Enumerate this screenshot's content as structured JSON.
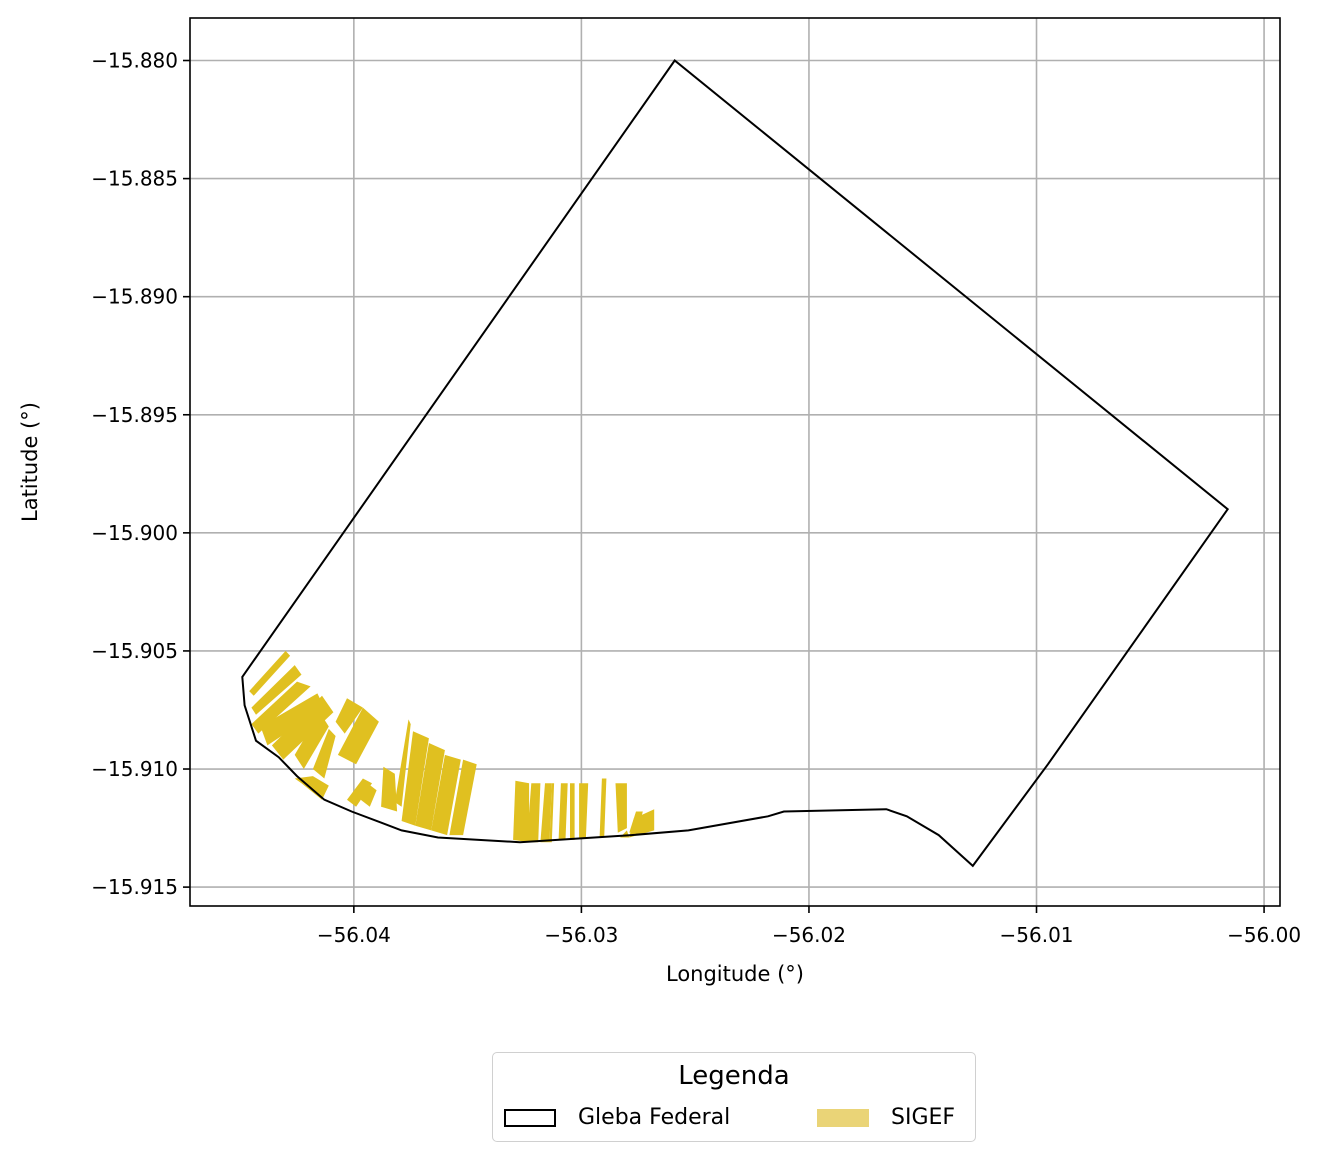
{
  "chart_data": {
    "type": "map",
    "xlabel": "Longitude (°)",
    "ylabel": "Latitude (°)",
    "xlim": [
      -56.0472,
      -55.9993
    ],
    "ylim": [
      -15.9158,
      -15.8782
    ],
    "x_ticks": [
      -56.04,
      -56.03,
      -56.02,
      -56.01,
      -56.0
    ],
    "x_tick_labels": [
      "−56.04",
      "−56.03",
      "−56.02",
      "−56.01",
      "−56.00"
    ],
    "y_ticks": [
      -15.88,
      -15.885,
      -15.89,
      -15.895,
      -15.9,
      -15.905,
      -15.91,
      -15.915
    ],
    "y_tick_labels": [
      "−15.880",
      "−15.885",
      "−15.890",
      "−15.895",
      "−15.900",
      "−15.905",
      "−15.910",
      "−15.915"
    ],
    "grid": true,
    "colors": {
      "gleba_edge": "#000000",
      "sigef_fill": "#e0c020",
      "legend_sigef": "#ead477",
      "grid": "#b0b0b0"
    },
    "gleba_federal": {
      "coordinates": [
        [
          -56.0449,
          -15.9061
        ],
        [
          -56.0259,
          -15.88
        ],
        [
          -56.0016,
          -15.899
        ],
        [
          -56.0095,
          -15.9098
        ],
        [
          -56.0128,
          -15.9141
        ],
        [
          -56.0143,
          -15.9128
        ],
        [
          -56.0157,
          -15.912
        ],
        [
          -56.0166,
          -15.9117
        ],
        [
          -56.0211,
          -15.9118
        ],
        [
          -56.0218,
          -15.912
        ],
        [
          -56.0253,
          -15.9126
        ],
        [
          -56.0278,
          -15.9128
        ],
        [
          -56.0327,
          -15.9131
        ],
        [
          -56.0363,
          -15.9129
        ],
        [
          -56.0379,
          -15.9126
        ],
        [
          -56.0401,
          -15.9118
        ],
        [
          -56.0413,
          -15.9113
        ],
        [
          -56.0425,
          -15.9103
        ],
        [
          -56.0433,
          -15.9095
        ],
        [
          -56.0443,
          -15.9088
        ],
        [
          -56.0448,
          -15.9073
        ],
        [
          -56.0449,
          -15.9061
        ]
      ]
    },
    "sigef_parcels": [
      [
        [
          -56.0446,
          -15.9067
        ],
        [
          -56.043,
          -15.905
        ],
        [
          -56.0428,
          -15.9052
        ],
        [
          -56.0444,
          -15.9069
        ]
      ],
      [
        [
          -56.0445,
          -15.9074
        ],
        [
          -56.0426,
          -15.9056
        ],
        [
          -56.0423,
          -15.906
        ],
        [
          -56.0443,
          -15.9077
        ]
      ],
      [
        [
          -56.0445,
          -15.9081
        ],
        [
          -56.0425,
          -15.9063
        ],
        [
          -56.0419,
          -15.9065
        ],
        [
          -56.0442,
          -15.9085
        ]
      ],
      [
        [
          -56.0441,
          -15.9082
        ],
        [
          -56.0416,
          -15.9068
        ],
        [
          -56.0413,
          -15.9074
        ],
        [
          -56.0438,
          -15.909
        ]
      ],
      [
        [
          -56.0436,
          -15.909
        ],
        [
          -56.0414,
          -15.9069
        ],
        [
          -56.0409,
          -15.9076
        ],
        [
          -56.0431,
          -15.9096
        ]
      ],
      [
        [
          -56.0426,
          -15.9094
        ],
        [
          -56.0415,
          -15.9076
        ],
        [
          -56.0411,
          -15.9082
        ],
        [
          -56.0422,
          -15.91
        ]
      ],
      [
        [
          -56.0418,
          -15.91
        ],
        [
          -56.0411,
          -15.9083
        ],
        [
          -56.0408,
          -15.9086
        ],
        [
          -56.0413,
          -15.9104
        ]
      ],
      [
        [
          -56.0426,
          -15.9104
        ],
        [
          -56.0418,
          -15.9103
        ],
        [
          -56.0411,
          -15.9107
        ],
        [
          -56.0414,
          -15.9113
        ],
        [
          -56.0423,
          -15.9106
        ]
      ],
      [
        [
          -56.0408,
          -15.908
        ],
        [
          -56.0403,
          -15.907
        ],
        [
          -56.0396,
          -15.9074
        ],
        [
          -56.0404,
          -15.9085
        ]
      ],
      [
        [
          -56.0407,
          -15.9094
        ],
        [
          -56.0396,
          -15.9074
        ],
        [
          -56.0389,
          -15.908
        ],
        [
          -56.0399,
          -15.9098
        ]
      ],
      [
        [
          -56.0403,
          -15.9113
        ],
        [
          -56.0396,
          -15.9104
        ],
        [
          -56.0392,
          -15.9106
        ],
        [
          -56.0399,
          -15.9116
        ]
      ],
      [
        [
          -56.0397,
          -15.9113
        ],
        [
          -56.0394,
          -15.9106
        ],
        [
          -56.039,
          -15.9109
        ],
        [
          -56.0393,
          -15.9116
        ]
      ],
      [
        [
          -56.0388,
          -15.9116
        ],
        [
          -56.0387,
          -15.9099
        ],
        [
          -56.0382,
          -15.9102
        ],
        [
          -56.0381,
          -15.9118
        ]
      ],
      [
        [
          -56.0382,
          -15.9114
        ],
        [
          -56.0376,
          -15.9079
        ],
        [
          -56.0375,
          -15.9081
        ],
        [
          -56.0379,
          -15.9116
        ]
      ],
      [
        [
          -56.0379,
          -15.9122
        ],
        [
          -56.0374,
          -15.9084
        ],
        [
          -56.0367,
          -15.9087
        ],
        [
          -56.0373,
          -15.9124
        ]
      ],
      [
        [
          -56.0373,
          -15.9124
        ],
        [
          -56.0367,
          -15.9089
        ],
        [
          -56.036,
          -15.9092
        ],
        [
          -56.0366,
          -15.9126
        ]
      ],
      [
        [
          -56.0366,
          -15.9126
        ],
        [
          -56.036,
          -15.9094
        ],
        [
          -56.0353,
          -15.9096
        ],
        [
          -56.0359,
          -15.9128
        ]
      ],
      [
        [
          -56.0358,
          -15.9128
        ],
        [
          -56.0352,
          -15.9096
        ],
        [
          -56.0346,
          -15.9098
        ],
        [
          -56.0352,
          -15.9128
        ]
      ],
      [
        [
          -56.033,
          -15.913
        ],
        [
          -56.0329,
          -15.9105
        ],
        [
          -56.0323,
          -15.9106
        ],
        [
          -56.0323,
          -15.9131
        ]
      ],
      [
        [
          -56.0324,
          -15.9131
        ],
        [
          -56.0322,
          -15.9106
        ],
        [
          -56.0318,
          -15.9106
        ],
        [
          -56.0319,
          -15.9131
        ]
      ],
      [
        [
          -56.0318,
          -15.9131
        ],
        [
          -56.0316,
          -15.9106
        ],
        [
          -56.0313,
          -15.9106
        ],
        [
          -56.0314,
          -15.9131
        ]
      ],
      [
        [
          -56.0314,
          -15.9131
        ],
        [
          -56.0313,
          -15.9106
        ],
        [
          -56.0312,
          -15.9106
        ],
        [
          -56.0313,
          -15.9131
        ]
      ],
      [
        [
          -56.031,
          -15.913
        ],
        [
          -56.0309,
          -15.9106
        ],
        [
          -56.0306,
          -15.9106
        ],
        [
          -56.0307,
          -15.913
        ]
      ],
      [
        [
          -56.0305,
          -15.913
        ],
        [
          -56.0305,
          -15.9106
        ],
        [
          -56.0303,
          -15.9106
        ],
        [
          -56.0303,
          -15.913
        ]
      ],
      [
        [
          -56.0301,
          -15.9129
        ],
        [
          -56.0301,
          -15.9106
        ],
        [
          -56.0297,
          -15.9106
        ],
        [
          -56.0298,
          -15.9129
        ]
      ],
      [
        [
          -56.0292,
          -15.9129
        ],
        [
          -56.0291,
          -15.9104
        ],
        [
          -56.0289,
          -15.9104
        ],
        [
          -56.029,
          -15.9129
        ]
      ],
      [
        [
          -56.0284,
          -15.9127
        ],
        [
          -56.0285,
          -15.9106
        ],
        [
          -56.028,
          -15.9106
        ],
        [
          -56.028,
          -15.9125
        ]
      ],
      [
        [
          -56.0283,
          -15.9129
        ],
        [
          -56.028,
          -15.9126
        ],
        [
          -56.0279,
          -15.9129
        ]
      ],
      [
        [
          -56.0279,
          -15.9127
        ],
        [
          -56.0276,
          -15.9118
        ],
        [
          -56.0273,
          -15.9118
        ],
        [
          -56.0275,
          -15.9126
        ]
      ],
      [
        [
          -56.0279,
          -15.9129
        ],
        [
          -56.0268,
          -15.9126
        ],
        [
          -56.0268,
          -15.9117
        ],
        [
          -56.0277,
          -15.9121
        ]
      ]
    ]
  },
  "legend": {
    "title": "Legenda",
    "items": [
      {
        "label": "Gleba Federal"
      },
      {
        "label": "SIGEF"
      }
    ]
  }
}
